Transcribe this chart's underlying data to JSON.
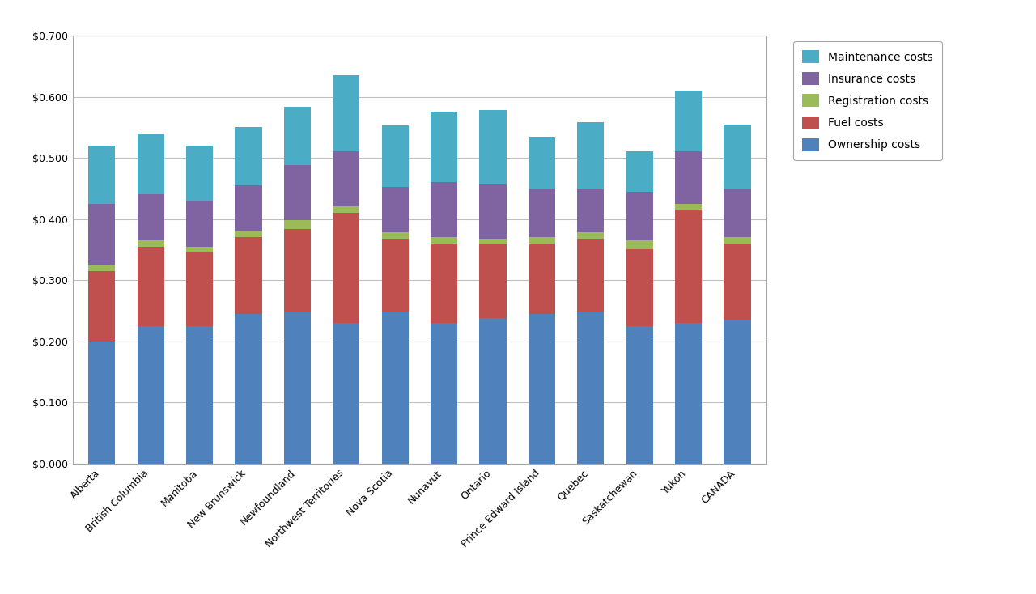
{
  "categories": [
    "Alberta",
    "British Columbia",
    "Manitoba",
    "New Brunswick",
    "Newfoundland",
    "Northwest Territories",
    "Nova Scotia",
    "Nunavut",
    "Ontario",
    "Prince Edward Island",
    "Quebec",
    "Saskatchewan",
    "Yukon",
    "CANADA"
  ],
  "ownership_costs": [
    0.2,
    0.225,
    0.225,
    0.245,
    0.248,
    0.23,
    0.248,
    0.23,
    0.238,
    0.245,
    0.248,
    0.225,
    0.23,
    0.235
  ],
  "fuel_costs": [
    0.115,
    0.13,
    0.12,
    0.125,
    0.135,
    0.18,
    0.12,
    0.13,
    0.12,
    0.115,
    0.12,
    0.125,
    0.185,
    0.125
  ],
  "registration_costs": [
    0.01,
    0.01,
    0.01,
    0.01,
    0.015,
    0.01,
    0.01,
    0.01,
    0.01,
    0.01,
    0.01,
    0.015,
    0.01,
    0.01
  ],
  "insurance_costs": [
    0.1,
    0.075,
    0.075,
    0.075,
    0.09,
    0.09,
    0.075,
    0.09,
    0.09,
    0.08,
    0.07,
    0.08,
    0.085,
    0.08
  ],
  "maintenance_costs": [
    0.095,
    0.1,
    0.09,
    0.095,
    0.095,
    0.125,
    0.1,
    0.115,
    0.12,
    0.085,
    0.11,
    0.065,
    0.1,
    0.105
  ],
  "bar_width": 0.55,
  "ownership_color": "#4F81BD",
  "fuel_color": "#C0504D",
  "registration_color": "#9BBB59",
  "insurance_color": "#8064A2",
  "maintenance_color": "#4BACC6",
  "background_color": "#FFFFFF",
  "plot_bg_color": "#FFFFFF",
  "grid_color": "#BFBFBF",
  "border_color": "#A6A6A6",
  "ylim": [
    0.0,
    0.7
  ],
  "ytick_values": [
    0.0,
    0.1,
    0.2,
    0.3,
    0.4,
    0.5,
    0.6,
    0.7
  ],
  "ytick_labels": [
    "$0.000",
    "$0.100",
    "$0.200",
    "$0.300",
    "$0.400",
    "$0.500",
    "$0.600",
    "$0.700"
  ],
  "legend_labels": [
    "Maintenance costs",
    "Insurance costs",
    "Registration costs",
    "Fuel costs",
    "Ownership costs"
  ],
  "tick_fontsize": 9,
  "legend_fontsize": 10
}
